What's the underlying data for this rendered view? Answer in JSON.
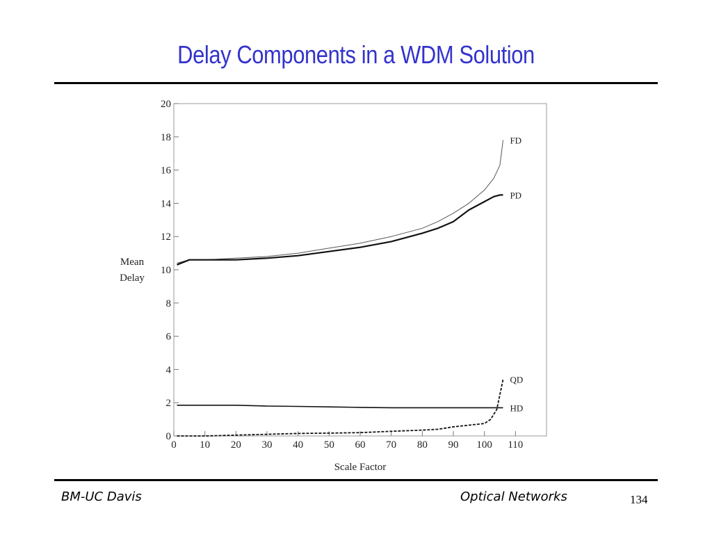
{
  "slide": {
    "title": "Delay Components in a WDM Solution",
    "footer_left": "BM-UC Davis",
    "footer_center": "Optical Networks",
    "page_number": "134"
  },
  "chart_data": {
    "type": "line",
    "title": "",
    "xlabel": "Scale Factor",
    "ylabel_lines": [
      "Mean",
      "Delay"
    ],
    "xlim": [
      0,
      110
    ],
    "ylim": [
      0,
      20
    ],
    "xticks": [
      0,
      10,
      20,
      30,
      40,
      50,
      60,
      70,
      80,
      90,
      100,
      110
    ],
    "yticks": [
      0,
      2,
      4,
      6,
      8,
      10,
      12,
      14,
      16,
      18,
      20
    ],
    "grid": false,
    "legend": "inline labels at line ends",
    "series": [
      {
        "name": "FD",
        "style": "thin",
        "x": [
          1,
          5,
          10,
          20,
          30,
          40,
          50,
          60,
          70,
          80,
          85,
          90,
          95,
          100,
          103,
          105,
          106
        ],
        "y": [
          10.4,
          10.6,
          10.6,
          10.7,
          10.8,
          11.0,
          11.3,
          11.6,
          12.0,
          12.5,
          12.9,
          13.4,
          14.0,
          14.8,
          15.5,
          16.3,
          17.8
        ]
      },
      {
        "name": "PD",
        "style": "thick",
        "x": [
          1,
          5,
          10,
          20,
          30,
          40,
          50,
          60,
          70,
          80,
          85,
          90,
          95,
          100,
          103,
          105,
          106
        ],
        "y": [
          10.3,
          10.6,
          10.6,
          10.6,
          10.7,
          10.85,
          11.1,
          11.35,
          11.7,
          12.2,
          12.5,
          12.9,
          13.6,
          14.1,
          14.4,
          14.5,
          14.5
        ]
      },
      {
        "name": "QD",
        "style": "dashed",
        "x": [
          1,
          10,
          20,
          30,
          40,
          50,
          60,
          70,
          80,
          85,
          90,
          95,
          100,
          102,
          104,
          105,
          106
        ],
        "y": [
          0.0,
          0.0,
          0.05,
          0.1,
          0.15,
          0.17,
          0.2,
          0.28,
          0.35,
          0.4,
          0.55,
          0.65,
          0.75,
          1.0,
          1.6,
          2.5,
          3.4
        ]
      },
      {
        "name": "HD",
        "style": "medium",
        "x": [
          1,
          10,
          20,
          30,
          40,
          50,
          60,
          70,
          80,
          90,
          100,
          106
        ],
        "y": [
          1.85,
          1.85,
          1.85,
          1.8,
          1.78,
          1.75,
          1.72,
          1.7,
          1.7,
          1.7,
          1.7,
          1.7
        ]
      }
    ]
  }
}
